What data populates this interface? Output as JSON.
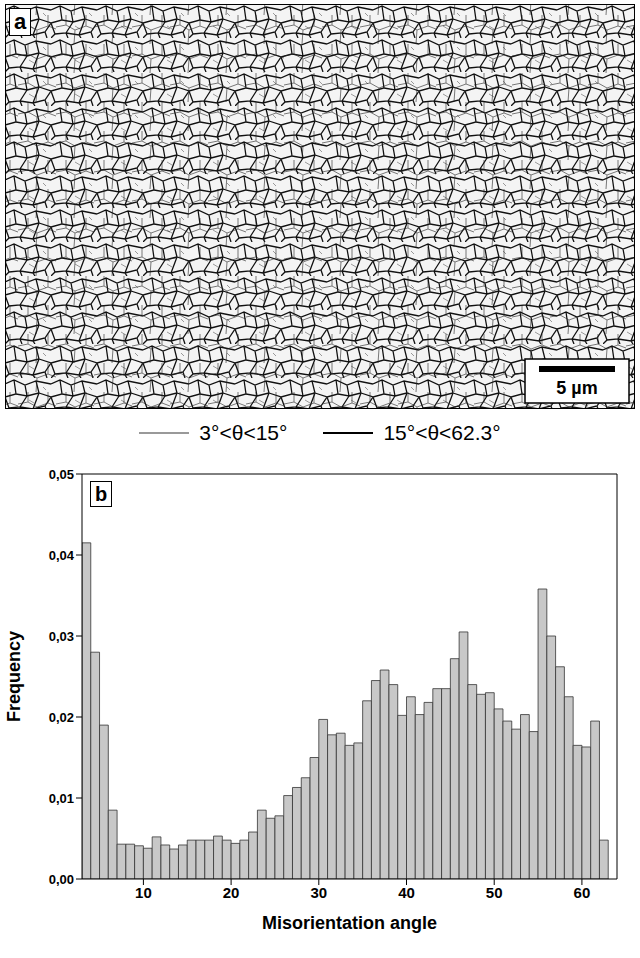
{
  "panel_a": {
    "label": "a",
    "scale_bar": "5 µm",
    "legend": [
      {
        "label": "3°<θ<15°",
        "color": "#999999"
      },
      {
        "label": "15°<θ<62.3°",
        "color": "#000000"
      }
    ]
  },
  "chart_data": {
    "type": "histogram",
    "panel_label": "b",
    "x_label": "Misorientation angle",
    "y_label": "Frequency",
    "color": "#c8c8c8",
    "bins": [
      3,
      4,
      5,
      6,
      7,
      8,
      9,
      10,
      11,
      12,
      13,
      14,
      15,
      16,
      17,
      18,
      19,
      20,
      21,
      22,
      23,
      24,
      25,
      26,
      27,
      28,
      29,
      30,
      31,
      32,
      33,
      34,
      35,
      36,
      37,
      38,
      39,
      40,
      41,
      42,
      43,
      44,
      45,
      46,
      47,
      48,
      49,
      50,
      51,
      52,
      53,
      54,
      55,
      56,
      57,
      58,
      59,
      60,
      61,
      62,
      63
    ],
    "counts": [
      0.0415,
      0.028,
      0.019,
      0.0085,
      0.0043,
      0.0043,
      0.0041,
      0.0038,
      0.0052,
      0.0042,
      0.0037,
      0.0042,
      0.0048,
      0.0048,
      0.0048,
      0.0053,
      0.0048,
      0.0044,
      0.0048,
      0.0058,
      0.0085,
      0.0075,
      0.0078,
      0.0103,
      0.0113,
      0.0125,
      0.015,
      0.0197,
      0.0178,
      0.018,
      0.0165,
      0.0168,
      0.022,
      0.0245,
      0.0258,
      0.024,
      0.0202,
      0.0225,
      0.0203,
      0.0218,
      0.0235,
      0.0235,
      0.0272,
      0.0305,
      0.024,
      0.0228,
      0.023,
      0.021,
      0.0195,
      0.0185,
      0.0203,
      0.0182,
      0.0358,
      0.03,
      0.0262,
      0.0225,
      0.0165,
      0.0163,
      0.0195,
      0.0048
    ],
    "xlim": [
      3,
      64
    ],
    "xticks": [
      10,
      20,
      30,
      40,
      50,
      60
    ],
    "ylim": [
      0,
      0.05
    ],
    "yticks": [
      {
        "value": 0,
        "label": "0,00"
      },
      {
        "value": 0.01,
        "label": "0,01"
      },
      {
        "value": 0.02,
        "label": "0,02"
      },
      {
        "value": 0.03,
        "label": "0,03"
      },
      {
        "value": 0.04,
        "label": "0,04"
      },
      {
        "value": 0.05,
        "label": "0,05"
      }
    ]
  }
}
